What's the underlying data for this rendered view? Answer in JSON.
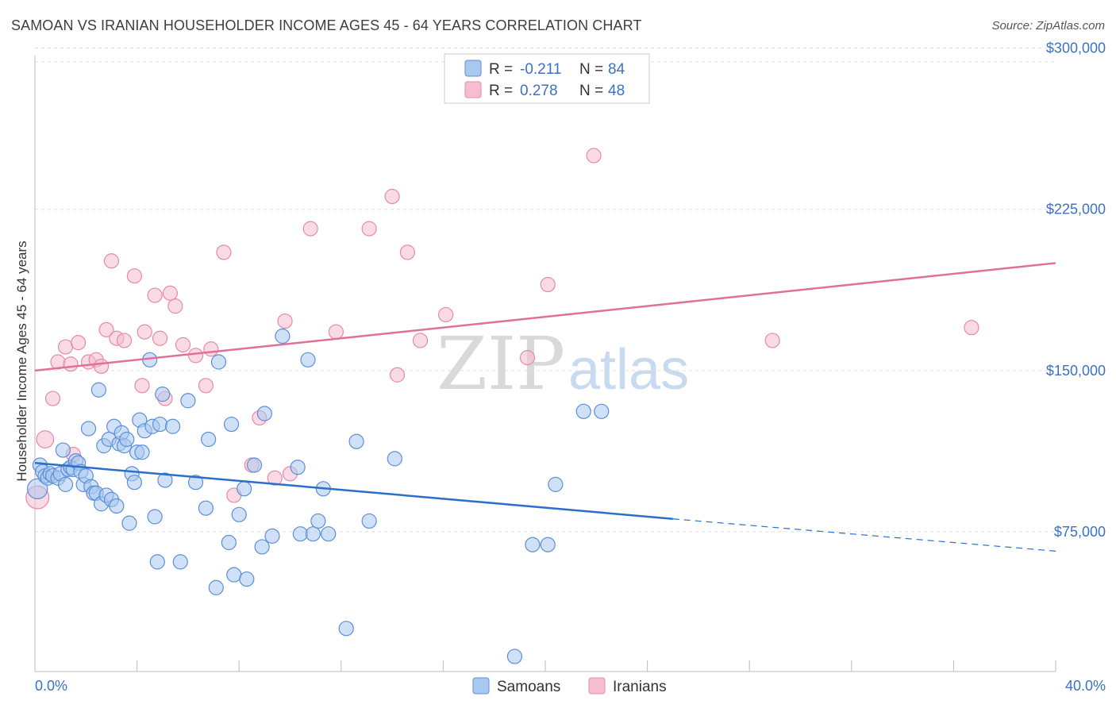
{
  "header": {
    "title": "SAMOAN VS IRANIAN HOUSEHOLDER INCOME AGES 45 - 64 YEARS CORRELATION CHART",
    "source": "Source: ZipAtlas.com"
  },
  "watermark": {
    "zip": "ZIP",
    "atlas": "atlas"
  },
  "legend": {
    "r_label": "R =",
    "n_label": "N =",
    "samoans": {
      "r": "-0.211",
      "n": "84"
    },
    "iranians": {
      "r": "0.278",
      "n": "48"
    }
  },
  "colors": {
    "samoans_fill": "#a9c8f0",
    "samoans_stroke": "#5b8fd6",
    "samoans_line": "#2a6fcc",
    "iranians_fill": "#f6bcd0",
    "iranians_stroke": "#e58aab",
    "iranians_line": "#e0709a"
  },
  "chart_data": {
    "type": "scatter",
    "xlabel": "",
    "ylabel": "Householder Income Ages 45 - 64 years",
    "xlim": [
      0,
      40
    ],
    "ylim": [
      10000,
      315000
    ],
    "x_tick_labels": [
      "0.0%",
      "40.0%"
    ],
    "y_ticks": [
      {
        "value": 75000,
        "label": "$75,000"
      },
      {
        "value": 150000,
        "label": "$150,000"
      },
      {
        "value": 225000,
        "label": "$225,000"
      },
      {
        "value": 300000,
        "label": "$300,000"
      }
    ],
    "legend_placement": "bottom",
    "series": [
      {
        "name": "Samoans",
        "trend": {
          "x0": 0,
          "y0": 107000,
          "x1": 25,
          "y1": 81000,
          "x_dash_end": 40,
          "y_dash_end": 66000
        },
        "points": [
          [
            0.1,
            95000,
            1.4
          ],
          [
            0.2,
            106000,
            1
          ],
          [
            0.3,
            103000,
            1
          ],
          [
            0.4,
            101000,
            1
          ],
          [
            0.5,
            100000,
            1
          ],
          [
            0.6,
            102000,
            1
          ],
          [
            0.7,
            101000,
            1
          ],
          [
            0.9,
            100000,
            1
          ],
          [
            1.0,
            102000,
            1
          ],
          [
            1.1,
            113000,
            1
          ],
          [
            1.2,
            97000,
            1
          ],
          [
            1.3,
            104000,
            1
          ],
          [
            1.4,
            105000,
            1
          ],
          [
            1.5,
            104000,
            1
          ],
          [
            1.6,
            108000,
            1
          ],
          [
            1.7,
            107000,
            1
          ],
          [
            1.8,
            103000,
            1
          ],
          [
            1.9,
            97000,
            1
          ],
          [
            2.0,
            101000,
            1
          ],
          [
            2.1,
            123000,
            1
          ],
          [
            2.2,
            96000,
            1
          ],
          [
            2.3,
            93000,
            1
          ],
          [
            2.4,
            93000,
            1
          ],
          [
            2.5,
            141000,
            1
          ],
          [
            2.6,
            88000,
            1
          ],
          [
            2.7,
            115000,
            1
          ],
          [
            2.8,
            92000,
            1
          ],
          [
            2.9,
            118000,
            1
          ],
          [
            3.0,
            90000,
            1
          ],
          [
            3.1,
            124000,
            1
          ],
          [
            3.2,
            87000,
            1
          ],
          [
            3.3,
            116000,
            1
          ],
          [
            3.4,
            121000,
            1
          ],
          [
            3.5,
            115000,
            1
          ],
          [
            3.6,
            118000,
            1
          ],
          [
            3.7,
            79000,
            1
          ],
          [
            3.8,
            102000,
            1
          ],
          [
            3.9,
            98000,
            1
          ],
          [
            4.0,
            112000,
            1
          ],
          [
            4.1,
            127000,
            1
          ],
          [
            4.2,
            112000,
            1
          ],
          [
            4.3,
            122000,
            1
          ],
          [
            4.5,
            155000,
            1
          ],
          [
            4.6,
            124000,
            1
          ],
          [
            4.7,
            82000,
            1
          ],
          [
            4.8,
            61000,
            1
          ],
          [
            4.9,
            125000,
            1
          ],
          [
            5.0,
            139000,
            1
          ],
          [
            5.1,
            99000,
            1
          ],
          [
            5.4,
            124000,
            1
          ],
          [
            5.7,
            61000,
            1
          ],
          [
            6.0,
            136000,
            1
          ],
          [
            6.3,
            98000,
            1
          ],
          [
            6.7,
            86000,
            1
          ],
          [
            6.8,
            118000,
            1
          ],
          [
            7.1,
            49000,
            1
          ],
          [
            7.2,
            154000,
            1
          ],
          [
            7.6,
            70000,
            1
          ],
          [
            7.7,
            125000,
            1
          ],
          [
            7.8,
            55000,
            1
          ],
          [
            8.0,
            83000,
            1
          ],
          [
            8.2,
            95000,
            1
          ],
          [
            8.3,
            53000,
            1
          ],
          [
            8.6,
            106000,
            1
          ],
          [
            8.9,
            68000,
            1
          ],
          [
            9.0,
            130000,
            1
          ],
          [
            9.3,
            73000,
            1
          ],
          [
            9.7,
            166000,
            1
          ],
          [
            10.3,
            105000,
            1
          ],
          [
            10.4,
            74000,
            1
          ],
          [
            10.7,
            155000,
            1
          ],
          [
            10.9,
            74000,
            1
          ],
          [
            11.1,
            80000,
            1
          ],
          [
            11.3,
            95000,
            1
          ],
          [
            11.5,
            74000,
            1
          ],
          [
            12.2,
            30000,
            1
          ],
          [
            12.6,
            117000,
            1
          ],
          [
            13.1,
            80000,
            1
          ],
          [
            14.1,
            109000,
            1
          ],
          [
            18.8,
            17000,
            1
          ],
          [
            19.5,
            69000,
            1
          ],
          [
            20.1,
            69000,
            1
          ],
          [
            20.4,
            97000,
            1
          ],
          [
            21.5,
            131000,
            1
          ],
          [
            22.2,
            131000,
            1
          ]
        ]
      },
      {
        "name": "Iranians",
        "trend": {
          "x0": 0,
          "y0": 150000,
          "x1": 40,
          "y1": 200000
        },
        "points": [
          [
            0.1,
            91000,
            1.6
          ],
          [
            0.4,
            118000,
            1.2
          ],
          [
            0.7,
            137000,
            1
          ],
          [
            0.9,
            154000,
            1
          ],
          [
            1.2,
            161000,
            1
          ],
          [
            1.4,
            153000,
            1
          ],
          [
            1.5,
            111000,
            1
          ],
          [
            1.7,
            163000,
            1
          ],
          [
            2.1,
            154000,
            1
          ],
          [
            2.4,
            155000,
            1
          ],
          [
            2.6,
            152000,
            1
          ],
          [
            2.8,
            169000,
            1
          ],
          [
            3.0,
            201000,
            1
          ],
          [
            3.2,
            165000,
            1
          ],
          [
            3.5,
            164000,
            1
          ],
          [
            3.9,
            194000,
            1
          ],
          [
            4.2,
            143000,
            1
          ],
          [
            4.3,
            168000,
            1
          ],
          [
            4.7,
            185000,
            1
          ],
          [
            4.9,
            165000,
            1
          ],
          [
            5.1,
            137000,
            1
          ],
          [
            5.3,
            186000,
            1
          ],
          [
            5.5,
            180000,
            1
          ],
          [
            5.8,
            162000,
            1
          ],
          [
            6.3,
            157000,
            1
          ],
          [
            6.7,
            143000,
            1
          ],
          [
            6.9,
            160000,
            1
          ],
          [
            7.4,
            205000,
            1
          ],
          [
            7.8,
            92000,
            1
          ],
          [
            8.5,
            106000,
            1
          ],
          [
            8.8,
            128000,
            1
          ],
          [
            9.4,
            100000,
            1
          ],
          [
            10.0,
            102000,
            1
          ],
          [
            9.8,
            173000,
            1
          ],
          [
            10.8,
            216000,
            1
          ],
          [
            11.8,
            168000,
            1
          ],
          [
            13.1,
            216000,
            1
          ],
          [
            14.0,
            231000,
            1
          ],
          [
            14.2,
            148000,
            1
          ],
          [
            14.6,
            205000,
            1
          ],
          [
            15.1,
            164000,
            1
          ],
          [
            16.1,
            176000,
            1
          ],
          [
            19.3,
            156000,
            1
          ],
          [
            20.1,
            190000,
            1
          ],
          [
            21.9,
            250000,
            1
          ],
          [
            28.9,
            164000,
            1
          ],
          [
            36.7,
            170000,
            1
          ]
        ]
      }
    ]
  },
  "bottom_legend": {
    "samoans": "Samoans",
    "iranians": "Iranians"
  }
}
